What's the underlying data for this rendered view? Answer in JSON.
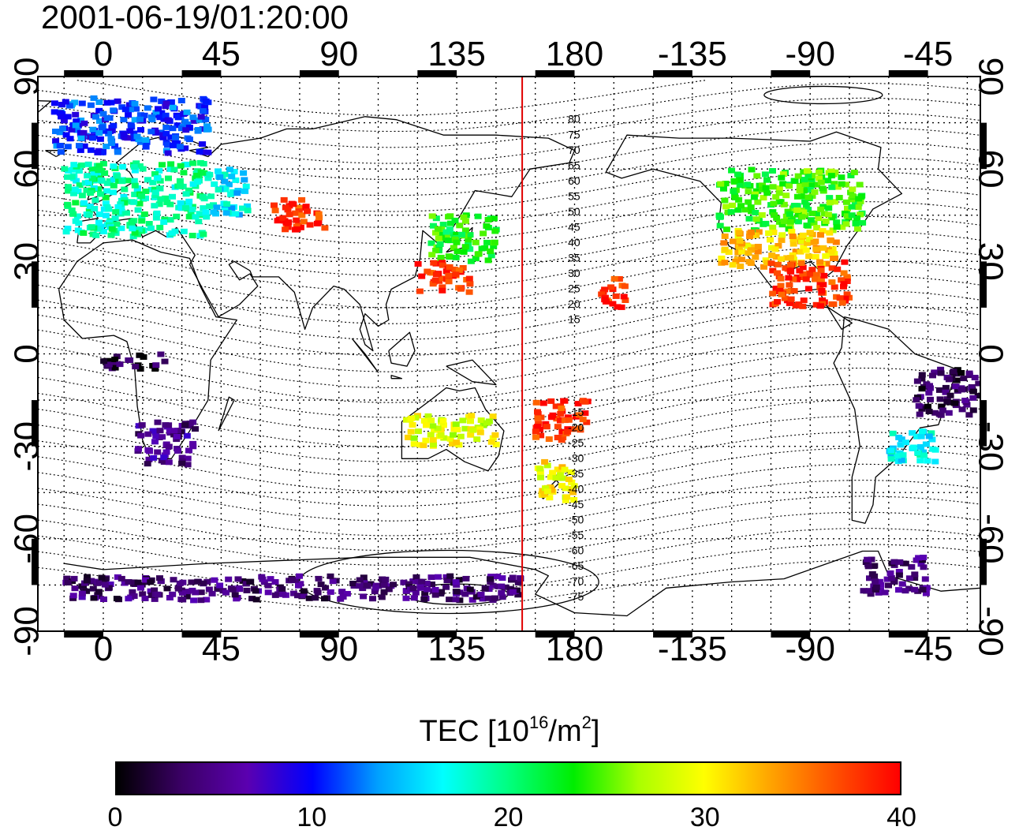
{
  "timestamp": "2001-06-19/01:20:00",
  "map": {
    "lon_ticks_labels": [
      "0",
      "45",
      "90",
      "135",
      "180",
      "-135",
      "-90",
      "-45"
    ],
    "lon_ticks_values": [
      0,
      45,
      90,
      135,
      180,
      225,
      270,
      315
    ],
    "lat_ticks_labels": [
      "90",
      "60",
      "30",
      "0",
      "-30",
      "-60",
      "-90"
    ],
    "lat_ticks_values": [
      90,
      60,
      30,
      0,
      -30,
      -60,
      -90
    ],
    "lon_range": [
      -25,
      335
    ],
    "lat_range": [
      -90,
      90
    ],
    "grid": true,
    "local_time_meridian_lon": 160,
    "local_time_meridian_color": "#e00000",
    "magnetic_lat_labels_north": [
      "80",
      "75",
      "70",
      "65",
      "60",
      "55",
      "50",
      "45",
      "40",
      "35",
      "30",
      "25",
      "20",
      "15"
    ],
    "magnetic_lat_labels_south": [
      "-15",
      "-20",
      "-25",
      "-30",
      "-35",
      "-40",
      "-45",
      "-50",
      "-55",
      "-60",
      "-65",
      "-70",
      "-75"
    ]
  },
  "colorbar": {
    "label_main": "TEC  [10",
    "label_exp": "16",
    "label_unit": "/m",
    "label_exp2": "2",
    "label_end": "]",
    "ticks": [
      "0",
      "10",
      "20",
      "30",
      "40"
    ],
    "range": [
      0,
      40
    ]
  },
  "colors": {
    "jet_stops": [
      "#000000",
      "#3b0066",
      "#5b00b0",
      "#0000ff",
      "#00a0ff",
      "#00ffff",
      "#00ff80",
      "#00ee00",
      "#aaff00",
      "#ffff00",
      "#ffa500",
      "#ff5000",
      "#ff0000"
    ]
  },
  "chart_data": {
    "type": "heatmap",
    "title": "2001-06-19/01:20:00",
    "colorbar_range": [
      0,
      40
    ],
    "regions": [
      {
        "lon": [
          -20,
          40
        ],
        "lat": [
          65,
          83
        ],
        "tec": 11
      },
      {
        "lon": [
          -15,
          40
        ],
        "lat": [
          38,
          62
        ],
        "tec": 19
      },
      {
        "lon": [
          40,
          55
        ],
        "lat": [
          45,
          60
        ],
        "tec": 16
      },
      {
        "lon": [
          65,
          85
        ],
        "lat": [
          40,
          50
        ],
        "tec": 38
      },
      {
        "lon": [
          125,
          150
        ],
        "lat": [
          30,
          45
        ],
        "tec": 23
      },
      {
        "lon": [
          120,
          140
        ],
        "lat": [
          20,
          30
        ],
        "tec": 38
      },
      {
        "lon": [
          190,
          200
        ],
        "lat": [
          15,
          25
        ],
        "tec": 38
      },
      {
        "lon": [
          235,
          290
        ],
        "lat": [
          40,
          60
        ],
        "tec": 24
      },
      {
        "lon": [
          235,
          280
        ],
        "lat": [
          28,
          40
        ],
        "tec": 32
      },
      {
        "lon": [
          255,
          285
        ],
        "lat": [
          15,
          30
        ],
        "tec": 38
      },
      {
        "lon": [
          0,
          25
        ],
        "lat": [
          -5,
          0
        ],
        "tec": 2
      },
      {
        "lon": [
          13,
          35
        ],
        "lat": [
          -37,
          -22
        ],
        "tec": 5
      },
      {
        "lon": [
          115,
          150
        ],
        "lat": [
          -30,
          -20
        ],
        "tec": 29
      },
      {
        "lon": [
          165,
          180
        ],
        "lat": [
          -48,
          -35
        ],
        "tec": 30
      },
      {
        "lon": [
          165,
          185
        ],
        "lat": [
          -28,
          -15
        ],
        "tec": 38
      },
      {
        "lon": [
          300,
          320
        ],
        "lat": [
          -35,
          -25
        ],
        "tec": 17
      },
      {
        "lon": [
          310,
          335
        ],
        "lat": [
          -20,
          -5
        ],
        "tec": 3
      },
      {
        "lon": [
          -15,
          160
        ],
        "lat": [
          -80,
          -72
        ],
        "tec": 4
      },
      {
        "lon": [
          290,
          315
        ],
        "lat": [
          -78,
          -66
        ],
        "tec": 4
      }
    ]
  }
}
